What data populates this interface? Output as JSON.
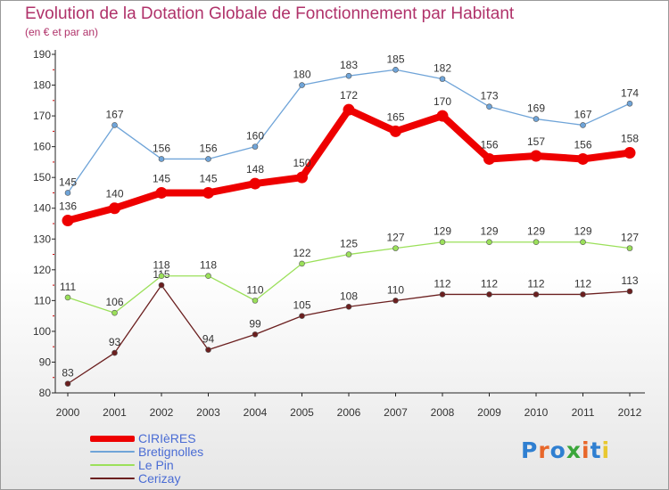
{
  "chart_data": {
    "type": "line",
    "title": "Evolution de la Dotation Globale de Fonctionnement par Habitant",
    "subtitle": "(en € et par an)",
    "x": [
      "2000",
      "2001",
      "2002",
      "2003",
      "2004",
      "2005",
      "2006",
      "2007",
      "2008",
      "2009",
      "2010",
      "2011",
      "2012"
    ],
    "ylim": [
      80,
      190
    ],
    "yticks": [
      80,
      90,
      100,
      110,
      120,
      130,
      140,
      150,
      160,
      170,
      180,
      190
    ],
    "grid": false,
    "legend_position": "bottom-left",
    "series": [
      {
        "name": "CIRIèRES",
        "color": "#ee0000",
        "values": [
          136,
          140,
          145,
          145,
          148,
          150,
          172,
          165,
          170,
          156,
          157,
          156,
          158
        ]
      },
      {
        "name": "Bretignolles",
        "color": "#6fa4d8",
        "values": [
          145,
          167,
          156,
          156,
          160,
          180,
          183,
          185,
          182,
          173,
          169,
          167,
          174
        ]
      },
      {
        "name": "Le Pin",
        "color": "#9be05a",
        "values": [
          111,
          106,
          118,
          118,
          110,
          122,
          125,
          127,
          129,
          129,
          129,
          129,
          127
        ]
      },
      {
        "name": "Cerizay",
        "color": "#6b1f1f",
        "values": [
          83,
          93,
          115,
          94,
          99,
          105,
          108,
          110,
          112,
          112,
          112,
          112,
          113
        ]
      }
    ]
  },
  "logo": {
    "letters": [
      "P",
      "r",
      "o",
      "x",
      "i",
      "t",
      "i"
    ],
    "colors": [
      "#2f7fd1",
      "#e8672a",
      "#2f7fd1",
      "#3aa63a",
      "#e8672a",
      "#2f7fd1",
      "#e8c830"
    ]
  }
}
